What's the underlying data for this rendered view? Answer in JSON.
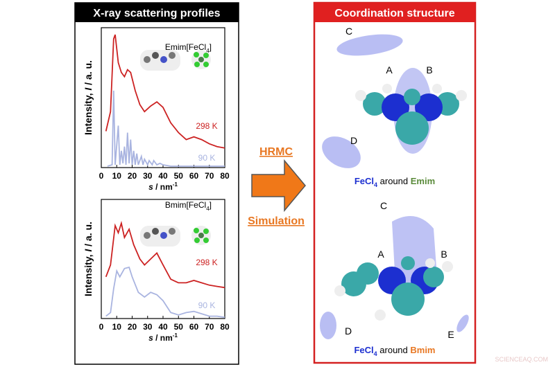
{
  "left_title": "X-ray scattering profiles",
  "right_title": "Coordination structure",
  "method": {
    "top": "HRMC",
    "bottom": "Simulation"
  },
  "watermark": "SCIENCEAQ.COM",
  "coordination": [
    {
      "prefix": "FeCl",
      "sub": "4",
      "middle": " around ",
      "ion": "Emim",
      "ion_color": "#5a8a3a",
      "labels": [
        "C",
        "A",
        "B",
        "D"
      ]
    },
    {
      "prefix": "FeCl",
      "sub": "4",
      "middle": " around ",
      "ion": "Bmim",
      "ion_color": "#e87722",
      "labels": [
        "C",
        "A",
        "B",
        "D",
        "E"
      ]
    }
  ],
  "chart_data": [
    {
      "type": "line",
      "compound": {
        "name": "Emim[FeCl",
        "sub": "4",
        "close": "]"
      },
      "y_label": {
        "a": "Intensity, ",
        "b": "I",
        "c": " / a. u."
      },
      "x_label": {
        "a": "s",
        "b": " / nm",
        "c": "-1"
      },
      "xlim": [
        0,
        80
      ],
      "xticks": [
        0,
        10,
        20,
        30,
        40,
        50,
        60,
        70,
        80
      ],
      "ylim": [
        0,
        1
      ],
      "series": [
        {
          "name": "298 K",
          "color": "#cc2222",
          "x": [
            3,
            6,
            8,
            9,
            11,
            13,
            15,
            17,
            19,
            22,
            25,
            28,
            32,
            36,
            40,
            45,
            50,
            55,
            60,
            65,
            70,
            75,
            80
          ],
          "values": [
            0.26,
            0.4,
            0.92,
            0.95,
            0.75,
            0.68,
            0.65,
            0.7,
            0.68,
            0.55,
            0.45,
            0.4,
            0.44,
            0.47,
            0.43,
            0.32,
            0.25,
            0.2,
            0.22,
            0.2,
            0.17,
            0.15,
            0.14
          ]
        },
        {
          "name": "90 K",
          "color": "#a9b4e0",
          "x": [
            4,
            7,
            8,
            9,
            11,
            12,
            13,
            14,
            15,
            16,
            17,
            18,
            19,
            20,
            21,
            22,
            23,
            24,
            26,
            27,
            28,
            30,
            31,
            33,
            34,
            36,
            38,
            40,
            45,
            50,
            60,
            70,
            80
          ],
          "values": [
            0.01,
            0.02,
            0.55,
            0.02,
            0.3,
            0.02,
            0.12,
            0.03,
            0.15,
            0.02,
            0.25,
            0.03,
            0.2,
            0.02,
            0.12,
            0.02,
            0.1,
            0.02,
            0.08,
            0.02,
            0.06,
            0.02,
            0.05,
            0.02,
            0.05,
            0.02,
            0.03,
            0.02,
            0.01,
            0.01,
            0.01,
            0.01,
            0.01
          ]
        }
      ]
    },
    {
      "type": "line",
      "compound": {
        "name": "Bmim[FeCl",
        "sub": "4",
        "close": "]"
      },
      "y_label": {
        "a": "Intensity, ",
        "b": "I",
        "c": " / a. u."
      },
      "x_label": {
        "a": "s",
        "b": " / nm",
        "c": "-1"
      },
      "xlim": [
        0,
        80
      ],
      "xticks": [
        0,
        10,
        20,
        30,
        40,
        50,
        60,
        70,
        80
      ],
      "ylim": [
        0,
        1
      ],
      "series": [
        {
          "name": "298 K",
          "color": "#cc2222",
          "x": [
            3,
            6,
            9,
            11,
            13,
            15,
            18,
            21,
            25,
            28,
            32,
            36,
            40,
            45,
            50,
            55,
            60,
            65,
            70,
            75,
            80
          ],
          "values": [
            0.35,
            0.45,
            0.78,
            0.72,
            0.8,
            0.68,
            0.75,
            0.62,
            0.5,
            0.45,
            0.5,
            0.55,
            0.45,
            0.33,
            0.3,
            0.3,
            0.32,
            0.3,
            0.28,
            0.27,
            0.26
          ]
        },
        {
          "name": "90 K",
          "color": "#a9b4e0",
          "x": [
            3,
            6,
            8,
            10,
            12,
            15,
            18,
            20,
            24,
            28,
            32,
            36,
            40,
            45,
            50,
            55,
            60,
            65,
            70,
            75,
            80
          ],
          "values": [
            0.02,
            0.05,
            0.25,
            0.4,
            0.35,
            0.42,
            0.43,
            0.35,
            0.22,
            0.18,
            0.22,
            0.2,
            0.15,
            0.05,
            0.03,
            0.05,
            0.06,
            0.04,
            0.02,
            0.02,
            0.01
          ]
        }
      ]
    }
  ]
}
